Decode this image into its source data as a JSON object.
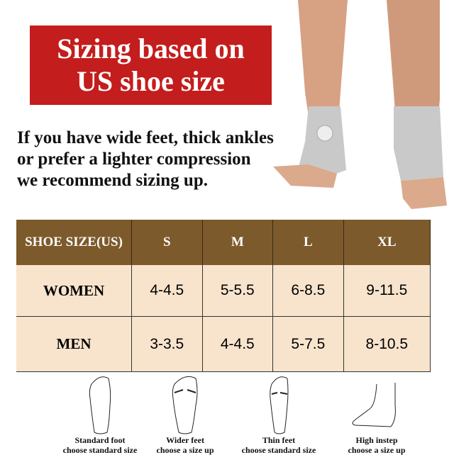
{
  "banner": {
    "line1": "Sizing based on",
    "line2": "US shoe size"
  },
  "note": {
    "line1": "If you have wide feet, thick ankles",
    "line2": "or prefer a lighter compression",
    "line3": "we recommend sizing up."
  },
  "table": {
    "headers": [
      "SHOE SIZE(US)",
      "S",
      "M",
      "L",
      "XL"
    ],
    "rows": [
      {
        "label": "WOMEN",
        "values": [
          "4-4.5",
          "5-5.5",
          "6-8.5",
          "9-11.5"
        ]
      },
      {
        "label": "MEN",
        "values": [
          "3-3.5",
          "4-4.5",
          "5-7.5",
          "8-10.5"
        ]
      }
    ]
  },
  "feet": [
    {
      "title": "Standard foot",
      "advice": "choose standard size"
    },
    {
      "title": "Wider feet",
      "advice": "choose a size up"
    },
    {
      "title": "Thin feet",
      "advice": "choose standard size"
    },
    {
      "title": "High instep",
      "advice": "choose a size up"
    }
  ],
  "colors": {
    "banner": "#c41d1d",
    "header": "#7d5a2b",
    "cell": "#f8e4cc"
  }
}
